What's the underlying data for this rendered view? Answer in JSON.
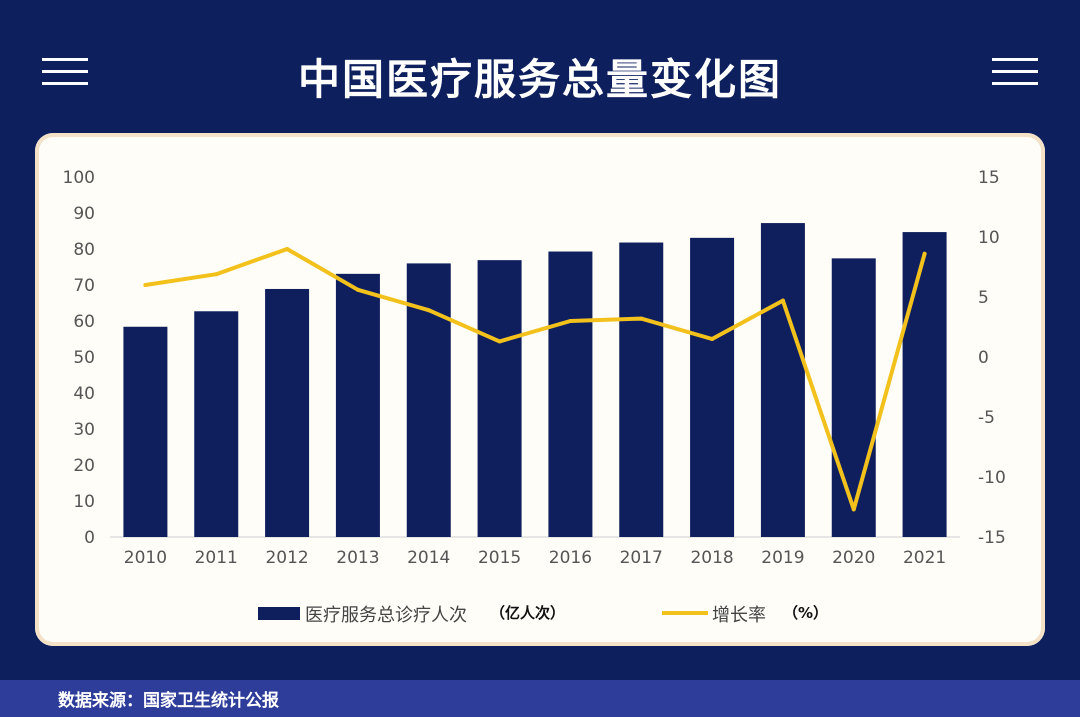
{
  "page": {
    "title": "中国医疗服务总量变化图",
    "source": "数据来源：国家卫生统计公报"
  },
  "colors": {
    "background": "#0d1f5c",
    "bar": "#0f1f5e",
    "line": "#f2c11c",
    "panel": "#fffdf8",
    "footer": "#2f3d9a"
  },
  "chart_data": {
    "type": "bar",
    "categories": [
      "2010",
      "2011",
      "2012",
      "2013",
      "2014",
      "2015",
      "2016",
      "2017",
      "2018",
      "2019",
      "2020",
      "2021"
    ],
    "series": [
      {
        "name": "医疗服务总诊疗人次",
        "unit": "（亿人次）",
        "type": "bar",
        "axis": "left",
        "values": [
          58.4,
          62.7,
          68.9,
          73.1,
          76.0,
          76.9,
          79.3,
          81.8,
          83.1,
          87.2,
          77.4,
          84.7
        ]
      },
      {
        "name": "增长率",
        "unit": "（%）",
        "type": "line",
        "axis": "right",
        "values": [
          6.0,
          6.9,
          9.0,
          5.6,
          3.9,
          1.3,
          3.0,
          3.2,
          1.5,
          4.7,
          -12.7,
          8.6
        ]
      }
    ],
    "ylim_left": [
      0,
      100
    ],
    "yticks_left": [
      "0",
      "10",
      "20",
      "30",
      "40",
      "50",
      "60",
      "70",
      "80",
      "90",
      "100"
    ],
    "ylim_right": [
      -15,
      15
    ],
    "yticks_right": [
      "-15",
      "-10",
      "-5",
      "0",
      "5",
      "10",
      "15"
    ],
    "grid": false,
    "legend_position": "bottom"
  }
}
